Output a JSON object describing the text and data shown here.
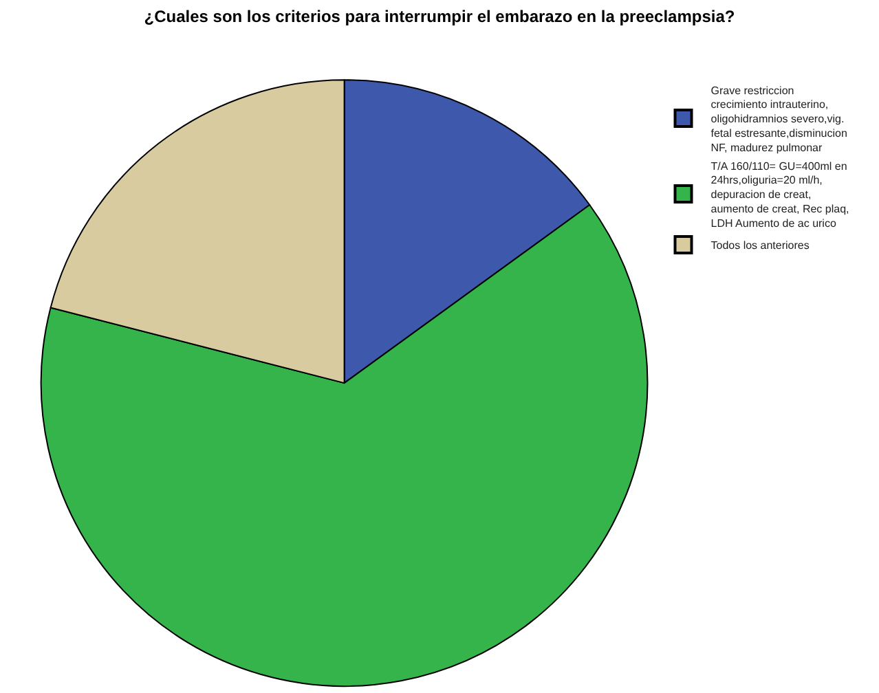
{
  "chart_data": {
    "type": "pie",
    "title": "¿Cuales son los criterios para interrumpir el embarazo en la preeclampsia?",
    "categories": [
      "Grave restriccion\ncrecimiento intrauterino,\noligohidramnios severo,vig.\nfetal estresante,disminucion\nNF, madurez pulmonar",
      "T/A 160/110= GU=400ml en\n24hrs,oliguria=20 ml/h,\ndepuracion de creat,\naumento de creat, Rec plaq,\nLDH Aumento de ac urico",
      "Todos los anteriores"
    ],
    "values": [
      15,
      64,
      21
    ],
    "colors": [
      "#3e58ac",
      "#34b44a",
      "#d8cba0"
    ],
    "legend": "top right"
  }
}
